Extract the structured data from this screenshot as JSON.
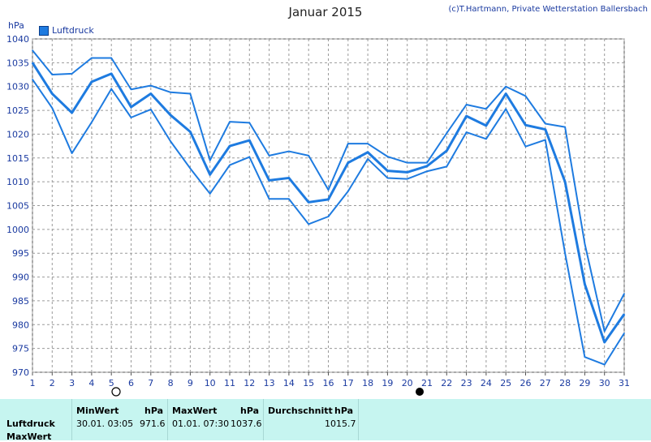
{
  "header": {
    "title": "Januar 2015",
    "copyright": "(c)T.Hartmann, Private Wetterstation Ballersbach"
  },
  "legend": {
    "label": "Luftdruck",
    "color": "#1e7be0"
  },
  "moon_phases": [
    "full-moon",
    "new-moon"
  ],
  "chart_data": {
    "type": "line",
    "ylabel": "hPa",
    "ylim": [
      970,
      1040
    ],
    "yticks": [
      970,
      975,
      980,
      985,
      990,
      995,
      1000,
      1005,
      1010,
      1015,
      1020,
      1025,
      1030,
      1035,
      1040
    ],
    "xlim": [
      1,
      31
    ],
    "x": [
      1,
      2,
      3,
      4,
      5,
      6,
      7,
      8,
      9,
      10,
      11,
      12,
      13,
      14,
      15,
      16,
      17,
      18,
      19,
      20,
      21,
      22,
      23,
      24,
      25,
      26,
      27,
      28,
      29,
      30,
      31
    ],
    "grid": true,
    "legend_position": "top-left",
    "series": [
      {
        "name": "Luftdruck",
        "values": [
          1035,
          1028.5,
          1024.5,
          1031,
          1032.7,
          1025.7,
          1028.5,
          1024,
          1020.5,
          1011.5,
          1017.5,
          1018.7,
          1010.3,
          1010.8,
          1005.7,
          1006.3,
          1014,
          1016.2,
          1012.3,
          1012,
          1013.3,
          1016.5,
          1023.8,
          1021.8,
          1028.5,
          1021.9,
          1021,
          1010,
          988.5,
          976.3,
          982.2
        ]
      },
      {
        "name": "MaxWert",
        "values": [
          1037.6,
          1032.5,
          1032.7,
          1036,
          1036,
          1029.4,
          1030.2,
          1028.8,
          1028.5,
          1014.5,
          1022.6,
          1022.4,
          1015.5,
          1016.4,
          1015.5,
          1008.3,
          1018,
          1018,
          1015.3,
          1014,
          1014,
          1020.2,
          1026.2,
          1025.3,
          1030,
          1028,
          1022.2,
          1021.5,
          997,
          978.6,
          986.5
        ]
      },
      {
        "name": "MinWert",
        "values": [
          1031.5,
          1025.5,
          1016,
          1022.5,
          1029.5,
          1023.5,
          1025.2,
          1018.5,
          1012.8,
          1007.5,
          1013.5,
          1015.2,
          1006.4,
          1006.4,
          1001.1,
          1002.7,
          1008,
          1014.8,
          1010.8,
          1010.6,
          1012.2,
          1013.2,
          1020.4,
          1019,
          1025.3,
          1017.4,
          1018.8,
          995,
          973.2,
          971.6,
          978.2
        ]
      }
    ]
  },
  "stats": {
    "row_labels": [
      "Luftdruck",
      "MaxWert"
    ],
    "min": {
      "label": "MinWert",
      "unit": "hPa",
      "datetime": "30.01.  03:05",
      "value": "971.6"
    },
    "max": {
      "label": "MaxWert",
      "unit": "hPa",
      "datetime": "01.01.  07:30",
      "value": "1037.6"
    },
    "avg": {
      "label": "Durchschnitt",
      "unit": "hPa",
      "value": "1015.7"
    }
  }
}
